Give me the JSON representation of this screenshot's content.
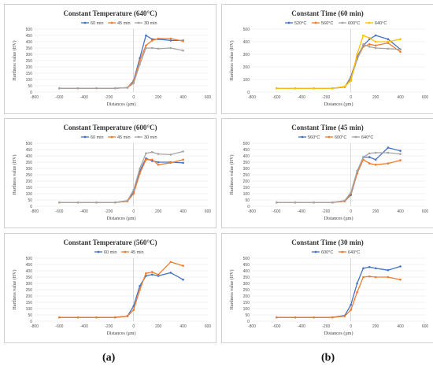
{
  "captions": {
    "left": "(a)",
    "right": "(b)"
  },
  "colors": {
    "blue": "#4472C4",
    "orange": "#ED7D31",
    "gray": "#A5A5A5",
    "yellow": "#FFC000"
  },
  "chart_data": [
    {
      "type": "line",
      "title": "Constant Temperature (640°C)",
      "xlabel": "Distances (µm)",
      "ylabel": "Hardness value (HV)",
      "xlim": [
        -800,
        600
      ],
      "ylim": [
        0,
        500
      ],
      "xticks": [
        -800,
        -600,
        -400,
        -200,
        0,
        200,
        400,
        600
      ],
      "yticks": [
        0,
        50,
        100,
        150,
        200,
        250,
        300,
        350,
        400,
        450,
        500
      ],
      "legend": "top",
      "series": [
        {
          "name": "60 min",
          "color": "#4472C4",
          "x": [
            -600,
            -450,
            -300,
            -150,
            -50,
            0,
            50,
            100,
            150,
            200,
            300,
            400
          ],
          "y": [
            30,
            30,
            30,
            30,
            35,
            90,
            270,
            450,
            420,
            420,
            410,
            410
          ]
        },
        {
          "name": "45 min",
          "color": "#ED7D31",
          "x": [
            -600,
            -450,
            -300,
            -150,
            -50,
            0,
            50,
            100,
            150,
            200,
            300,
            400
          ],
          "y": [
            30,
            30,
            30,
            30,
            35,
            80,
            250,
            370,
            410,
            425,
            425,
            405
          ]
        },
        {
          "name": "30 min",
          "color": "#A5A5A5",
          "x": [
            -600,
            -450,
            -300,
            -150,
            -50,
            0,
            50,
            100,
            150,
            200,
            300,
            400
          ],
          "y": [
            30,
            30,
            30,
            30,
            35,
            70,
            220,
            350,
            350,
            345,
            350,
            330
          ]
        }
      ]
    },
    {
      "type": "line",
      "title": "Constant Temperature (600°C)",
      "xlabel": "Distances (µm)",
      "ylabel": "Hardness value (HV)",
      "xlim": [
        -800,
        600
      ],
      "ylim": [
        0,
        500
      ],
      "xticks": [
        -800,
        -600,
        -400,
        -200,
        0,
        200,
        400,
        600
      ],
      "yticks": [
        0,
        50,
        100,
        150,
        200,
        250,
        300,
        350,
        400,
        450,
        500
      ],
      "legend": "top",
      "series": [
        {
          "name": "60 min",
          "color": "#4472C4",
          "x": [
            -600,
            -450,
            -300,
            -150,
            -50,
            0,
            50,
            100,
            150,
            200,
            300,
            400
          ],
          "y": [
            30,
            30,
            30,
            30,
            40,
            110,
            280,
            380,
            360,
            350,
            350,
            345
          ]
        },
        {
          "name": "45 min",
          "color": "#ED7D31",
          "x": [
            -600,
            -450,
            -300,
            -150,
            -50,
            0,
            50,
            100,
            150,
            200,
            300,
            400
          ],
          "y": [
            30,
            30,
            30,
            30,
            40,
            100,
            260,
            370,
            370,
            330,
            345,
            370
          ]
        },
        {
          "name": "30 min",
          "color": "#A5A5A5",
          "x": [
            -600,
            -450,
            -300,
            -150,
            -50,
            0,
            50,
            100,
            150,
            200,
            300,
            400
          ],
          "y": [
            30,
            30,
            30,
            30,
            45,
            130,
            300,
            420,
            430,
            415,
            410,
            435
          ]
        }
      ]
    },
    {
      "type": "line",
      "title": "Constant Temperature (560°C)",
      "xlabel": "Distances (µm)",
      "ylabel": "Hardness value (HV)",
      "xlim": [
        -800,
        600
      ],
      "ylim": [
        0,
        500
      ],
      "xticks": [
        -800,
        -600,
        -400,
        -200,
        0,
        200,
        400,
        600
      ],
      "yticks": [
        0,
        50,
        100,
        150,
        200,
        250,
        300,
        350,
        400,
        450,
        500
      ],
      "legend": "top",
      "series": [
        {
          "name": "60 min",
          "color": "#4472C4",
          "x": [
            -600,
            -450,
            -300,
            -150,
            -50,
            0,
            50,
            100,
            150,
            200,
            300,
            400
          ],
          "y": [
            30,
            30,
            30,
            30,
            40,
            120,
            280,
            360,
            370,
            360,
            385,
            330
          ]
        },
        {
          "name": "45 min",
          "color": "#ED7D31",
          "x": [
            -600,
            -450,
            -300,
            -150,
            -50,
            0,
            50,
            100,
            150,
            200,
            300,
            400
          ],
          "y": [
            30,
            30,
            30,
            30,
            40,
            90,
            250,
            380,
            390,
            370,
            470,
            440
          ]
        }
      ]
    },
    {
      "type": "line",
      "title": "Constant Time (60 min)",
      "xlabel": "Distances (µm)",
      "ylabel": "Hardness value (HV)",
      "xlim": [
        -800,
        600
      ],
      "ylim": [
        0,
        500
      ],
      "xticks": [
        -800,
        -600,
        -400,
        -200,
        0,
        200,
        400,
        600
      ],
      "yticks": [
        0,
        100,
        200,
        300,
        400,
        500
      ],
      "legend": "top",
      "series": [
        {
          "name": "520°C",
          "color": "#4472C4",
          "x": [
            -600,
            -450,
            -300,
            -150,
            -50,
            0,
            50,
            100,
            150,
            200,
            300,
            400
          ],
          "y": [
            30,
            30,
            30,
            30,
            40,
            120,
            280,
            370,
            420,
            450,
            420,
            340
          ]
        },
        {
          "name": "560°C",
          "color": "#ED7D31",
          "x": [
            -600,
            -450,
            -300,
            -150,
            -50,
            0,
            50,
            100,
            150,
            200,
            300,
            400
          ],
          "y": [
            30,
            30,
            30,
            30,
            40,
            110,
            260,
            360,
            380,
            370,
            390,
            320
          ]
        },
        {
          "name": "600°C",
          "color": "#A5A5A5",
          "x": [
            -600,
            -450,
            -300,
            -150,
            -50,
            0,
            50,
            100,
            150,
            200,
            300,
            400
          ],
          "y": [
            30,
            30,
            30,
            30,
            40,
            100,
            260,
            380,
            360,
            350,
            345,
            340
          ]
        },
        {
          "name": "640°C",
          "color": "#FFC000",
          "x": [
            -600,
            -450,
            -300,
            -150,
            -50,
            0,
            50,
            100,
            150,
            200,
            300,
            400
          ],
          "y": [
            30,
            30,
            30,
            30,
            45,
            90,
            300,
            450,
            430,
            400,
            400,
            420
          ]
        }
      ]
    },
    {
      "type": "line",
      "title": "Constant Time (45 min)",
      "xlabel": "Distances (µm)",
      "ylabel": "Hardness value (HV)",
      "xlim": [
        -800,
        600
      ],
      "ylim": [
        0,
        500
      ],
      "xticks": [
        -800,
        -600,
        -400,
        -200,
        0,
        200,
        400,
        600
      ],
      "yticks": [
        0,
        50,
        100,
        150,
        200,
        250,
        300,
        350,
        400,
        450,
        500
      ],
      "legend": "top",
      "series": [
        {
          "name": "560°C",
          "color": "#4472C4",
          "x": [
            -600,
            -450,
            -300,
            -150,
            -50,
            0,
            50,
            100,
            150,
            200,
            300,
            400
          ],
          "y": [
            30,
            30,
            30,
            30,
            40,
            90,
            260,
            390,
            390,
            370,
            465,
            440
          ]
        },
        {
          "name": "600°C",
          "color": "#ED7D31",
          "x": [
            -600,
            -450,
            -300,
            -150,
            -50,
            0,
            50,
            100,
            150,
            200,
            300,
            400
          ],
          "y": [
            30,
            30,
            30,
            30,
            40,
            100,
            260,
            370,
            340,
            330,
            340,
            365
          ]
        },
        {
          "name": "640°C",
          "color": "#A5A5A5",
          "x": [
            -600,
            -450,
            -300,
            -150,
            -50,
            0,
            50,
            100,
            150,
            200,
            300,
            400
          ],
          "y": [
            30,
            30,
            30,
            30,
            45,
            110,
            280,
            390,
            420,
            425,
            425,
            415
          ]
        }
      ]
    },
    {
      "type": "line",
      "title": "Constant Time (30 min)",
      "xlabel": "Distances (µm)",
      "ylabel": "Hardness value (HV)",
      "xlim": [
        -800,
        600
      ],
      "ylim": [
        0,
        500
      ],
      "xticks": [
        -800,
        -600,
        -400,
        -200,
        0,
        200,
        400,
        600
      ],
      "yticks": [
        0,
        50,
        100,
        150,
        200,
        250,
        300,
        350,
        400,
        450,
        500
      ],
      "legend": "top",
      "series": [
        {
          "name": "600°C",
          "color": "#4472C4",
          "x": [
            -600,
            -450,
            -300,
            -150,
            -50,
            0,
            50,
            100,
            150,
            200,
            300,
            400
          ],
          "y": [
            30,
            30,
            30,
            30,
            45,
            130,
            300,
            420,
            430,
            420,
            405,
            435
          ]
        },
        {
          "name": "640°C",
          "color": "#ED7D31",
          "x": [
            -600,
            -450,
            -300,
            -150,
            -50,
            0,
            50,
            100,
            150,
            200,
            300,
            400
          ],
          "y": [
            30,
            30,
            30,
            30,
            40,
            90,
            230,
            350,
            355,
            350,
            350,
            330
          ]
        }
      ]
    }
  ]
}
